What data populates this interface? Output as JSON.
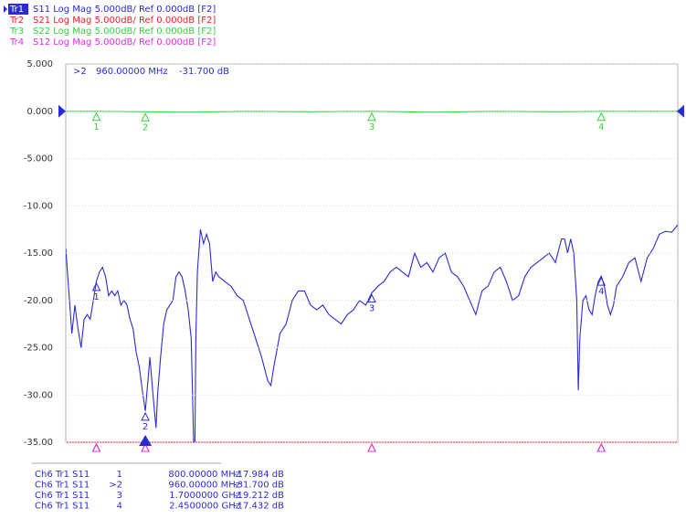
{
  "chart_data": {
    "type": "line",
    "xlim": [
      700,
      2700
    ],
    "ylim": [
      -35,
      5
    ],
    "yticks": [
      {
        "value": 5,
        "label": "5.000"
      },
      {
        "value": 0,
        "label": "0.000"
      },
      {
        "value": -5,
        "label": "-5.000"
      },
      {
        "value": -10,
        "label": "-10.00"
      },
      {
        "value": -15,
        "label": "-15.00"
      },
      {
        "value": -20,
        "label": "-20.00"
      },
      {
        "value": -25,
        "label": "-25.00"
      },
      {
        "value": -30,
        "label": "-30.00"
      },
      {
        "value": -35,
        "label": "-35.00"
      }
    ],
    "grid": true,
    "ref_level": 0,
    "active_readout": {
      "number": ">2",
      "stimulus": "960.00000 MHz",
      "response": "-31.700 dB"
    },
    "series": [
      {
        "name": "Tr1",
        "label": "S11 Log Mag 5.000dB/ Ref 0.000dB [F2]",
        "color": "#2b2bd6",
        "x": [
          700,
          710,
          720,
          730,
          740,
          750,
          760,
          770,
          780,
          790,
          800,
          810,
          820,
          830,
          840,
          850,
          860,
          870,
          880,
          890,
          900,
          910,
          920,
          930,
          940,
          950,
          960,
          970,
          975,
          985,
          995,
          1000,
          1010,
          1020,
          1030,
          1040,
          1050,
          1060,
          1070,
          1080,
          1090,
          1100,
          1110,
          1118,
          1122,
          1125,
          1130,
          1140,
          1150,
          1160,
          1170,
          1180,
          1190,
          1200,
          1220,
          1240,
          1260,
          1280,
          1300,
          1320,
          1340,
          1360,
          1370,
          1380,
          1400,
          1420,
          1440,
          1460,
          1480,
          1500,
          1520,
          1540,
          1560,
          1580,
          1600,
          1620,
          1640,
          1660,
          1680,
          1700,
          1720,
          1740,
          1760,
          1780,
          1800,
          1820,
          1840,
          1860,
          1880,
          1900,
          1920,
          1940,
          1960,
          1980,
          2000,
          2020,
          2040,
          2060,
          2080,
          2100,
          2120,
          2140,
          2160,
          2180,
          2200,
          2220,
          2240,
          2260,
          2280,
          2300,
          2320,
          2330,
          2340,
          2350,
          2360,
          2370,
          2375,
          2380,
          2390,
          2400,
          2410,
          2420,
          2430,
          2440,
          2450,
          2460,
          2470,
          2480,
          2490,
          2500,
          2520,
          2540,
          2560,
          2580,
          2600,
          2620,
          2640,
          2660,
          2680,
          2700
        ],
        "values": [
          -14.5,
          -19,
          -23.5,
          -20.5,
          -23,
          -25,
          -22,
          -21.5,
          -22,
          -20,
          -17.98,
          -17,
          -16.5,
          -17.5,
          -19.5,
          -19,
          -19.5,
          -19,
          -20.5,
          -20,
          -20.5,
          -22,
          -23,
          -25.5,
          -27,
          -29.5,
          -31.7,
          -28,
          -26,
          -30,
          -33.5,
          -30,
          -26,
          -22.5,
          -21,
          -20.5,
          -20,
          -17.5,
          -17,
          -17.5,
          -19,
          -21,
          -24,
          -35,
          -35,
          -24,
          -17,
          -12.5,
          -14,
          -13,
          -14,
          -18,
          -17,
          -17.5,
          -18,
          -18.5,
          -19.5,
          -20,
          -22,
          -24,
          -26,
          -28.5,
          -29,
          -27,
          -23.5,
          -22.5,
          -20,
          -19,
          -19,
          -20.5,
          -21,
          -20.5,
          -21.5,
          -22,
          -22.5,
          -21.5,
          -21,
          -20,
          -20.5,
          -19.21,
          -18.5,
          -18,
          -17,
          -16.5,
          -17,
          -17.5,
          -15,
          -16.5,
          -16,
          -17,
          -15.5,
          -15,
          -17,
          -17.5,
          -18.5,
          -20,
          -21.5,
          -19,
          -18.5,
          -17,
          -16.5,
          -18,
          -20,
          -19.5,
          -17.5,
          -16.5,
          -16,
          -15.5,
          -15,
          -16,
          -13.5,
          -13.5,
          -15,
          -13.5,
          -15,
          -20,
          -29.5,
          -24,
          -20,
          -19.5,
          -21,
          -21.5,
          -19.5,
          -18,
          -17.43,
          -18.5,
          -20.5,
          -21.5,
          -20.5,
          -18.5,
          -17.5,
          -16,
          -15.5,
          -18,
          -15.5,
          -14.5,
          -13,
          -12.7,
          -12.8,
          -12
        ]
      },
      {
        "name": "Tr2",
        "label": "S21 Log Mag 5.000dB/ Ref 0.000dB [F2]",
        "color": "#e8242a",
        "x": [
          700,
          2700
        ],
        "values": [
          -35,
          -35
        ]
      },
      {
        "name": "Tr3",
        "label": "S22 Log Mag 5.000dB/ Ref 0.000dB [F2]",
        "color": "#3ccf3c",
        "x": [
          700,
          800,
          960,
          1100,
          1300,
          1500,
          1700,
          1900,
          2100,
          2300,
          2450,
          2700
        ],
        "values": [
          0,
          0,
          -0.05,
          -0.1,
          0,
          -0.05,
          0,
          -0.1,
          0,
          -0.05,
          0,
          0
        ]
      },
      {
        "name": "Tr4",
        "label": "S12 Log Mag 5.000dB/ Ref 0.000dB [F2]",
        "color": "#e030e0",
        "x": [
          700,
          2700
        ],
        "values": [
          -35,
          -35
        ]
      }
    ],
    "markers": [
      {
        "label": "1",
        "number": "1",
        "trace": "Ch6 Tr1 S11",
        "stimulus": "800.00000 MHz",
        "response": "-17.984 dB",
        "x": 800,
        "value": -17.984
      },
      {
        "label": "2",
        "number": ">2",
        "trace": "Ch6 Tr1 S11",
        "stimulus": "960.00000 MHz",
        "response": "-31.700 dB",
        "x": 960,
        "value": -31.7
      },
      {
        "label": "3",
        "number": "3",
        "trace": "Ch6 Tr1 S11",
        "stimulus": "1.7000000 GHz",
        "response": "-19.212 dB",
        "x": 1700,
        "value": -19.212
      },
      {
        "label": "4",
        "number": "4",
        "trace": "Ch6 Tr1 S11",
        "stimulus": "2.4500000 GHz",
        "response": "-17.432 dB",
        "x": 2450,
        "value": -17.432
      }
    ]
  }
}
